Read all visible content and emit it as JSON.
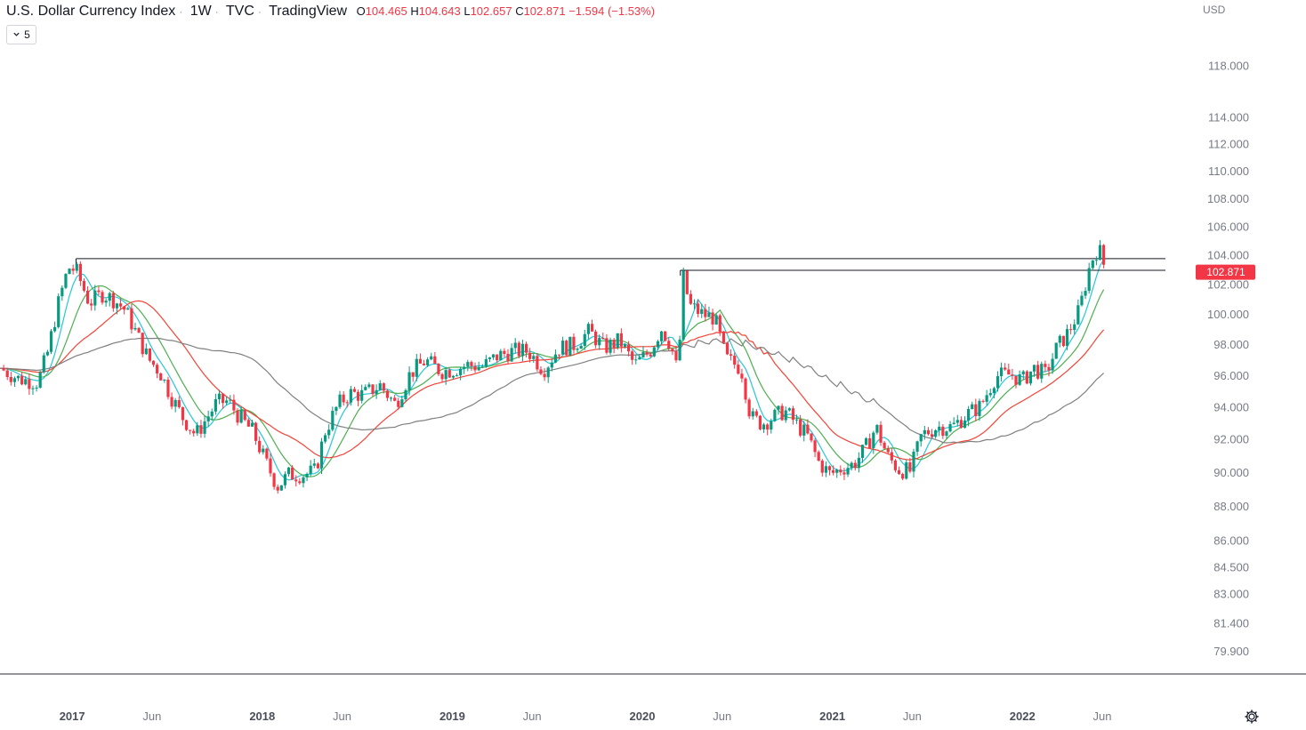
{
  "header": {
    "symbol": "U.S. Dollar Currency Index",
    "interval": "1W",
    "exchange": "TVC",
    "source": "TradingView",
    "open_label": "O",
    "open": "104.465",
    "high_label": "H",
    "high": "104.643",
    "low_label": "L",
    "low": "102.657",
    "close_label": "C",
    "close": "102.871",
    "change": "−1.594 (−1.53%)"
  },
  "indicators_toggle": {
    "count": "5",
    "icon": "chevron-down-icon"
  },
  "colors": {
    "down": "#f23645",
    "up": "#089981",
    "sma_fast": "#26c6da",
    "sma_mid": "#4caf50",
    "sma_slow": "#f44336",
    "sma_long": "#808080",
    "level_line": "#131722",
    "axis_text": "#787b86"
  },
  "chart_data": {
    "type": "candlestick",
    "currency_label": "USD",
    "y_scale": "log",
    "ylim": [
      79.0,
      120.0
    ],
    "y_ticks": [
      "118.000",
      "114.000",
      "112.000",
      "110.000",
      "108.000",
      "106.000",
      "104.000",
      "102.000",
      "100.000",
      "98.000",
      "96.000",
      "94.000",
      "92.000",
      "90.000",
      "88.000",
      "86.000",
      "84.500",
      "83.000",
      "81.400",
      "79.900"
    ],
    "x_ticks": [
      {
        "label": "2017",
        "bold": true,
        "x": 2017.0
      },
      {
        "label": "Jun",
        "bold": false,
        "x": 2017.42
      },
      {
        "label": "2018",
        "bold": true,
        "x": 2018.0
      },
      {
        "label": "Jun",
        "bold": false,
        "x": 2018.42
      },
      {
        "label": "2019",
        "bold": true,
        "x": 2019.0
      },
      {
        "label": "Jun",
        "bold": false,
        "x": 2019.42
      },
      {
        "label": "2020",
        "bold": true,
        "x": 2020.0
      },
      {
        "label": "Jun",
        "bold": false,
        "x": 2020.42
      },
      {
        "label": "2021",
        "bold": true,
        "x": 2021.0
      },
      {
        "label": "Jun",
        "bold": false,
        "x": 2021.42
      },
      {
        "label": "2022",
        "bold": true,
        "x": 2022.0
      },
      {
        "label": "Jun",
        "bold": false,
        "x": 2022.42
      }
    ],
    "xlim": [
      2016.62,
      2022.79
    ],
    "last_price": "102.871",
    "horizontal_levels": [
      {
        "price": 103.8,
        "from": 2017.02,
        "to": 2022.44
      },
      {
        "price": 103.0,
        "from": 2020.2,
        "to": 2022.44
      }
    ],
    "price_path": [
      [
        2016.62,
        96.5
      ],
      [
        2016.72,
        95.8
      ],
      [
        2016.82,
        95.6
      ],
      [
        2016.87,
        97.5
      ],
      [
        2016.93,
        100.9
      ],
      [
        2016.98,
        103.2
      ],
      [
        2017.02,
        103.0
      ],
      [
        2017.09,
        100.8
      ],
      [
        2017.16,
        101.4
      ],
      [
        2017.22,
        101.0
      ],
      [
        2017.28,
        100.3
      ],
      [
        2017.34,
        98.7
      ],
      [
        2017.4,
        97.1
      ],
      [
        2017.46,
        96.3
      ],
      [
        2017.52,
        94.7
      ],
      [
        2017.58,
        93.4
      ],
      [
        2017.65,
        92.3
      ],
      [
        2017.7,
        93.2
      ],
      [
        2017.76,
        94.3
      ],
      [
        2017.82,
        94.4
      ],
      [
        2017.88,
        93.4
      ],
      [
        2017.95,
        92.5
      ],
      [
        2018.02,
        90.6
      ],
      [
        2018.08,
        89.2
      ],
      [
        2018.14,
        89.9
      ],
      [
        2018.22,
        89.9
      ],
      [
        2018.28,
        90.1
      ],
      [
        2018.33,
        92.5
      ],
      [
        2018.4,
        94.2
      ],
      [
        2018.46,
        94.9
      ],
      [
        2018.53,
        94.8
      ],
      [
        2018.62,
        95.4
      ],
      [
        2018.7,
        94.2
      ],
      [
        2018.78,
        96.2
      ],
      [
        2018.86,
        97.0
      ],
      [
        2018.94,
        96.3
      ],
      [
        2019.0,
        96.4
      ],
      [
        2019.08,
        96.7
      ],
      [
        2019.16,
        96.6
      ],
      [
        2019.24,
        97.3
      ],
      [
        2019.32,
        97.6
      ],
      [
        2019.4,
        97.6
      ],
      [
        2019.48,
        96.4
      ],
      [
        2019.56,
        97.8
      ],
      [
        2019.64,
        98.0
      ],
      [
        2019.72,
        98.9
      ],
      [
        2019.8,
        97.8
      ],
      [
        2019.88,
        98.3
      ],
      [
        2019.96,
        96.7
      ],
      [
        2020.04,
        97.6
      ],
      [
        2020.1,
        99.1
      ],
      [
        2020.15,
        98.0
      ],
      [
        2020.19,
        96.0
      ],
      [
        2020.21,
        102.8
      ],
      [
        2020.25,
        100.6
      ],
      [
        2020.32,
        100.0
      ],
      [
        2020.38,
        99.8
      ],
      [
        2020.44,
        97.1
      ],
      [
        2020.52,
        96.5
      ],
      [
        2020.57,
        93.4
      ],
      [
        2020.63,
        93.0
      ],
      [
        2020.69,
        93.4
      ],
      [
        2020.75,
        93.8
      ],
      [
        2020.81,
        93.0
      ],
      [
        2020.87,
        92.2
      ],
      [
        2020.93,
        90.6
      ],
      [
        2020.99,
        89.9
      ],
      [
        2021.05,
        90.3
      ],
      [
        2021.11,
        90.5
      ],
      [
        2021.17,
        91.4
      ],
      [
        2021.23,
        92.8
      ],
      [
        2021.29,
        91.0
      ],
      [
        2021.35,
        90.2
      ],
      [
        2021.41,
        90.1
      ],
      [
        2021.47,
        92.3
      ],
      [
        2021.55,
        92.8
      ],
      [
        2021.63,
        92.8
      ],
      [
        2021.71,
        93.6
      ],
      [
        2021.78,
        94.1
      ],
      [
        2021.86,
        96.0
      ],
      [
        2021.94,
        96.1
      ],
      [
        2022.0,
        95.7
      ],
      [
        2022.06,
        96.5
      ],
      [
        2022.12,
        96.1
      ],
      [
        2022.18,
        97.8
      ],
      [
        2022.24,
        98.8
      ],
      [
        2022.3,
        100.3
      ],
      [
        2022.36,
        103.6
      ],
      [
        2022.4,
        104.6
      ],
      [
        2022.44,
        102.9
      ]
    ],
    "sma_series": [
      {
        "color": "#26c6da",
        "lag": 0.09
      },
      {
        "color": "#4caf50",
        "lag": 0.2
      },
      {
        "color": "#f44336",
        "lag": 0.45
      },
      {
        "color": "#808080",
        "lag": 1.0
      }
    ]
  },
  "settings": {
    "icon": "gear-icon"
  }
}
